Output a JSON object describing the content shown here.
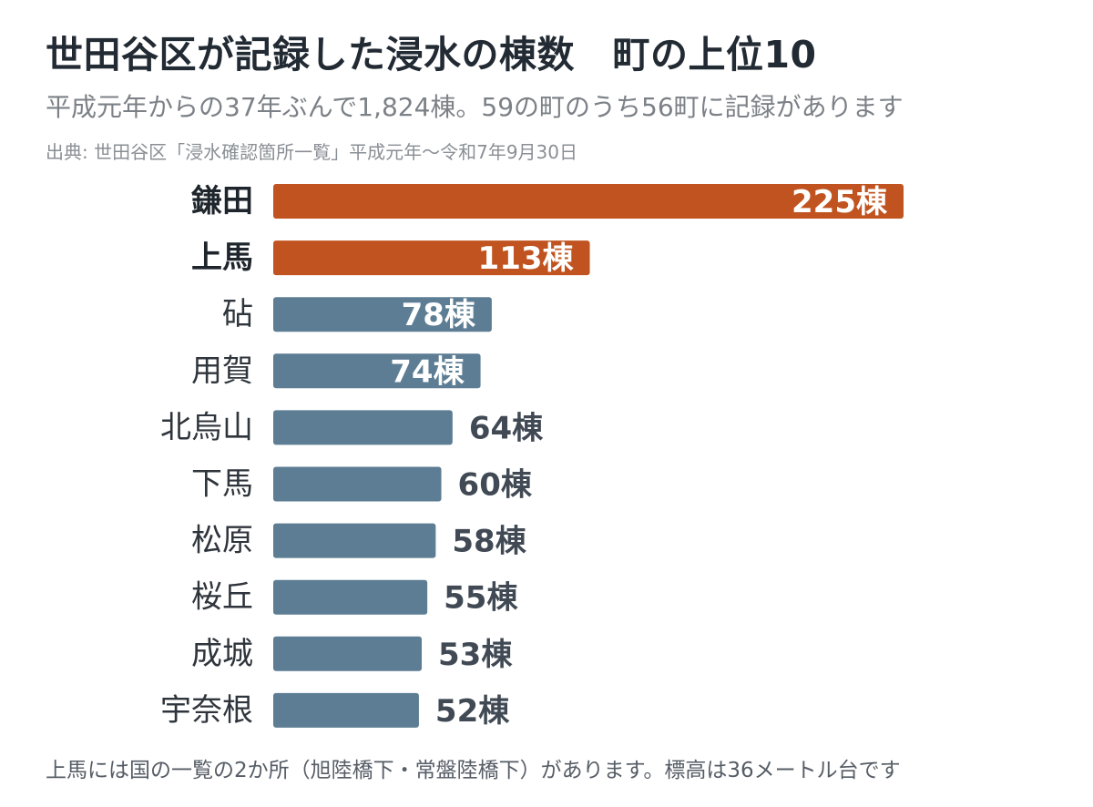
{
  "header": {
    "title": "世田谷区が記録した浸水の棟数　町の上位10",
    "subtitle": "平成元年からの37年ぶんで1,824棟。59の町のうち56町に記録があります",
    "source": "出典: 世田谷区「浸水確認箇所一覧」平成元年〜令和7年9月30日"
  },
  "footer": {
    "note": "上馬には国の一覧の2か所（旭陸橋下・常盤陸橋下）があります。標高は36メートル台です"
  },
  "colors": {
    "highlight": "#c0531f",
    "default": "#5c7d93",
    "label_inside": "#ffffff",
    "label_outside": "#414a54"
  },
  "chart_data": {
    "type": "bar",
    "orientation": "horizontal",
    "unit": "棟",
    "categories": [
      "鎌田",
      "上馬",
      "砧",
      "用賀",
      "北烏山",
      "下馬",
      "松原",
      "桜丘",
      "成城",
      "宇奈根"
    ],
    "values": [
      225,
      113,
      78,
      74,
      64,
      60,
      58,
      55,
      53,
      52
    ],
    "value_labels": [
      "225棟",
      "113棟",
      "78棟",
      "74棟",
      "64棟",
      "60棟",
      "58棟",
      "55棟",
      "53棟",
      "52棟"
    ],
    "highlighted": [
      "鎌田",
      "上馬"
    ],
    "xlim": [
      0,
      225
    ],
    "grid": false,
    "legend": false
  }
}
